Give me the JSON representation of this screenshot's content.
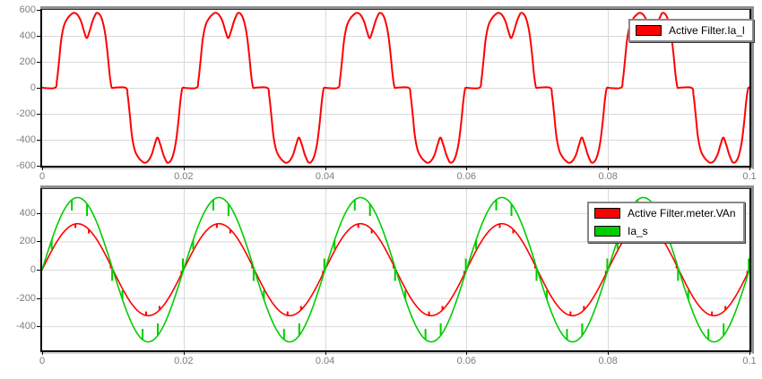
{
  "colors": {
    "trace_red": "#ff0000",
    "trace_green": "#00cc00",
    "grid": "#d9d9d9",
    "tick_label": "#7d7d7d",
    "plot_background": "#ffffff"
  },
  "chart_data": [
    {
      "type": "line",
      "title": "",
      "x_axis": {
        "min": 0,
        "max": 0.1,
        "ticks": [
          0,
          0.02,
          0.04,
          0.06,
          0.08,
          0.1
        ],
        "labels": [
          "0",
          "0.02",
          "0.04",
          "0.06",
          "0.08",
          "0.1"
        ]
      },
      "y_axis": {
        "min": -600,
        "max": 600,
        "ticks": [
          600,
          400,
          200,
          0,
          -200,
          -400,
          -600
        ],
        "labels": [
          "600",
          "400",
          "200",
          "0",
          "-200",
          "-400",
          "-600"
        ]
      },
      "grid": {
        "horizontal": true,
        "vertical": true
      },
      "legend": [
        {
          "label": "Active Filter.Ia_l",
          "color": "#ff0000"
        }
      ],
      "series": [
        {
          "name": "Active Filter.Ia_l",
          "color": "#ff0000",
          "stroke_width": 2,
          "waveform": {
            "kind": "periodic_keypoints",
            "period_ms": 20,
            "half_wave_mirror": true,
            "keypoints_ms_value": [
              [
                0,
                0
              ],
              [
                1.8,
                0
              ],
              [
                2.1,
                60
              ],
              [
                2.4,
                210
              ],
              [
                2.7,
                370
              ],
              [
                3.1,
                480
              ],
              [
                3.6,
                535
              ],
              [
                4.1,
                565
              ],
              [
                4.5,
                577
              ],
              [
                5.0,
                562
              ],
              [
                5.5,
                512
              ],
              [
                5.9,
                440
              ],
              [
                6.3,
                383
              ],
              [
                6.7,
                435
              ],
              [
                7.1,
                508
              ],
              [
                7.45,
                555
              ],
              [
                7.7,
                576
              ],
              [
                8.1,
                567
              ],
              [
                8.5,
                520
              ],
              [
                8.9,
                420
              ],
              [
                9.25,
                265
              ],
              [
                9.55,
                100
              ],
              [
                9.8,
                8
              ],
              [
                10,
                0
              ]
            ]
          }
        }
      ]
    },
    {
      "type": "line",
      "title": "",
      "x_axis": {
        "min": 0,
        "max": 0.1,
        "ticks": [
          0,
          0.02,
          0.04,
          0.06,
          0.08,
          0.1
        ],
        "labels": [
          "0",
          "0.02",
          "0.04",
          "0.06",
          "0.08",
          "0.1"
        ]
      },
      "y_axis": {
        "min": -570,
        "max": 570,
        "ticks": [
          400,
          200,
          0,
          -200,
          -400
        ],
        "labels": [
          "400",
          "200",
          "0",
          "-200",
          "-400"
        ]
      },
      "grid": {
        "horizontal": true,
        "vertical": true
      },
      "legend": [
        {
          "label": "Active Filter.meter.VAn",
          "color": "#ff0000"
        },
        {
          "label": "Ia_s",
          "color": "#00cc00"
        }
      ],
      "series": [
        {
          "name": "Active Filter.meter.VAn",
          "color": "#ff0000",
          "stroke_width": 1.6,
          "waveform": {
            "kind": "sine",
            "amplitude": 325,
            "frequency_hz": 50,
            "phase_deg": 0
          },
          "notches_ms_delta": [
            [
              4.7,
              -28
            ],
            [
              6.6,
              -28
            ],
            [
              9.7,
              -22
            ],
            [
              14.7,
              28
            ],
            [
              16.6,
              28
            ],
            [
              19.7,
              22
            ]
          ]
        },
        {
          "name": "Ia_s",
          "color": "#00cc00",
          "stroke_width": 1.6,
          "waveform": {
            "kind": "sine",
            "amplitude": 510,
            "frequency_hz": 50,
            "phase_deg": 0
          },
          "notches_ms_delta": [
            [
              1.35,
              -65
            ],
            [
              4.2,
              -75
            ],
            [
              6.35,
              -85
            ],
            [
              9.9,
              -95
            ],
            [
              11.35,
              65
            ],
            [
              14.2,
              75
            ],
            [
              16.35,
              85
            ],
            [
              19.9,
              95
            ]
          ]
        }
      ]
    }
  ]
}
